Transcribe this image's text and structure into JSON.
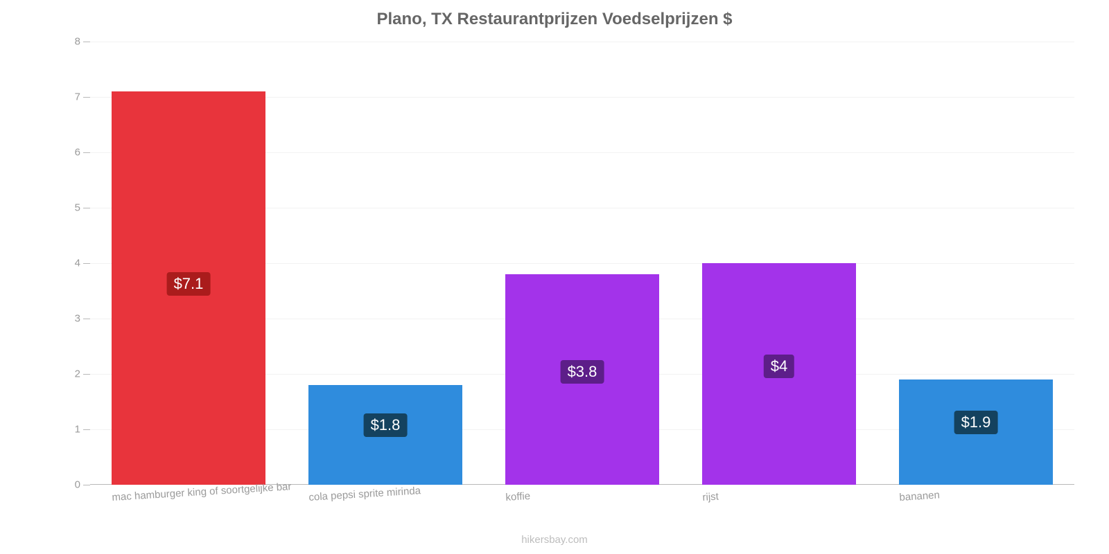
{
  "chart": {
    "type": "bar",
    "title": "Plano, TX Restaurantprijzen Voedselprijzen $",
    "title_color": "#666666",
    "title_fontsize": 24,
    "attribution": "hikersbay.com",
    "attribution_color": "#bdbdbd",
    "background_color": "#ffffff",
    "grid_color": "#f2f2f2",
    "axis_color": "#b8b8b8",
    "tick_label_color": "#9a9a9a",
    "tick_fontsize": 15,
    "ylim": [
      0,
      8
    ],
    "ytick_step": 1,
    "bar_width_ratio": 0.78,
    "x_label_rotation_deg": -3.5,
    "value_label_fontsize": 22,
    "value_label_text_color": "#ffffff",
    "categories": [
      {
        "label": "mac hamburger king of soortgelijke bar",
        "value": 7.1,
        "value_label": "$7.1",
        "bar_color": "#e8343c",
        "box_color": "#aa1c1c"
      },
      {
        "label": "cola pepsi sprite mirinda",
        "value": 1.8,
        "value_label": "$1.8",
        "bar_color": "#2f8cdd",
        "box_color": "#14425f"
      },
      {
        "label": "koffie",
        "value": 3.8,
        "value_label": "$3.8",
        "bar_color": "#a333ea",
        "box_color": "#5d1e89"
      },
      {
        "label": "rijst",
        "value": 4.0,
        "value_label": "$4",
        "bar_color": "#a333ea",
        "box_color": "#5d1e89"
      },
      {
        "label": "bananen",
        "value": 1.9,
        "value_label": "$1.9",
        "bar_color": "#2f8cdd",
        "box_color": "#14425f"
      }
    ]
  }
}
